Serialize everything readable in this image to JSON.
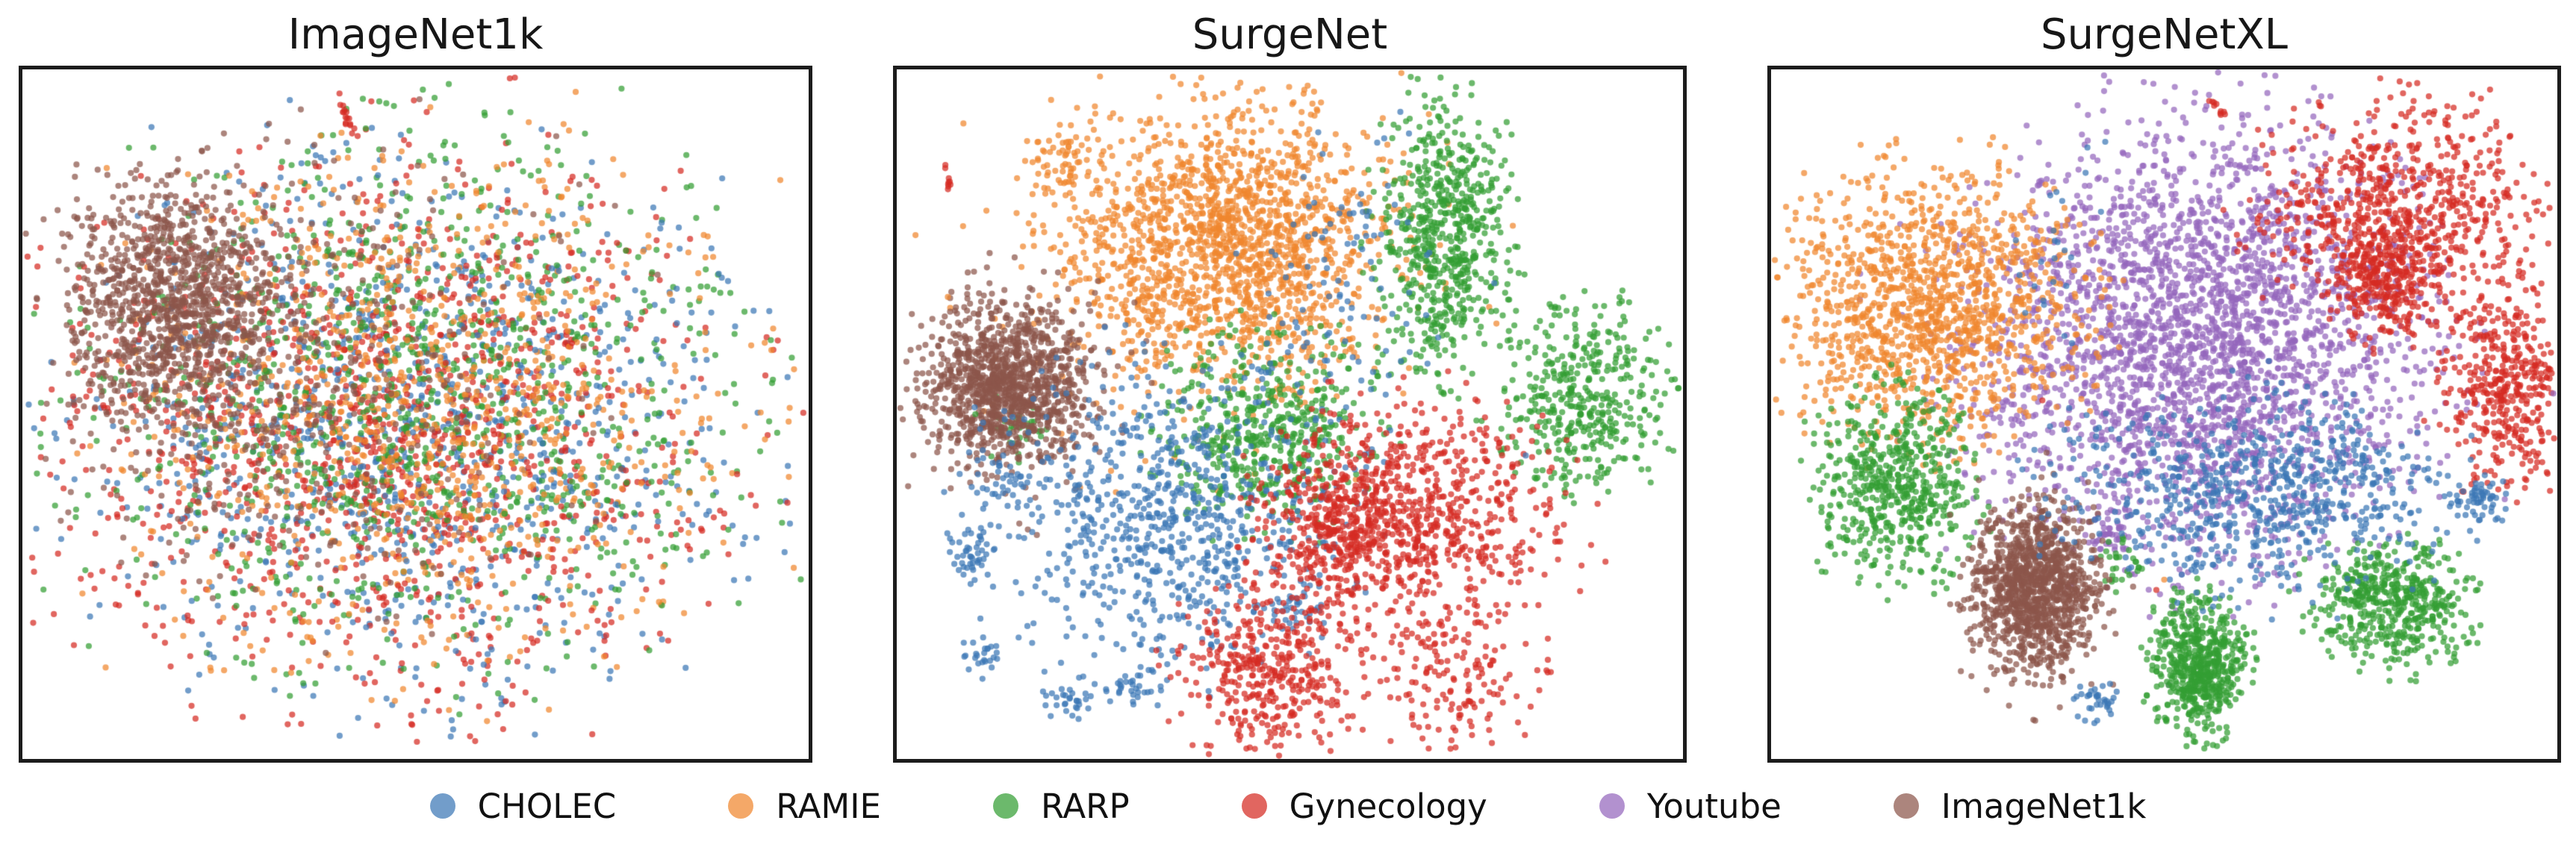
{
  "figure": {
    "background": "#ffffff",
    "border_color": "#1c1c1c",
    "description": "Three t-SNE feature-embedding scatter plots comparing pretraining datasets; axes have no ticks or labels"
  },
  "classes": {
    "CHOLEC": "#3c77b5",
    "RAMIE": "#f0862e",
    "RARP": "#339e33",
    "Gynecology": "#d62b22",
    "Youtube": "#9467bd",
    "ImageNet1k": "#8c564b"
  },
  "style": {
    "point_radius": 4.1,
    "point_alpha": 0.72,
    "legend_marker_alpha": 0.72
  },
  "legend": {
    "position": "lower center",
    "items": [
      {
        "label": "CHOLEC",
        "class": "CHOLEC"
      },
      {
        "label": "RAMIE",
        "class": "RAMIE"
      },
      {
        "label": "RARP",
        "class": "RARP"
      },
      {
        "label": "Gynecology",
        "class": "Gynecology"
      },
      {
        "label": "Youtube",
        "class": "Youtube"
      },
      {
        "label": "ImageNet1k",
        "class": "ImageNet1k"
      }
    ]
  },
  "chart_data": [
    {
      "type": "scatter",
      "title": "ImageNet1k",
      "xlabel": "",
      "ylabel": "",
      "axes": {
        "ticks_visible": false,
        "range": [
          0,
          1
        ]
      },
      "seed": 11,
      "clusters": [
        {
          "class": "CHOLEC",
          "shape": "gauss",
          "cx": 0.49,
          "cy": 0.53,
          "sx": 0.19,
          "sy": 0.18,
          "n": 900
        },
        {
          "class": "Gynecology",
          "shape": "gauss",
          "cx": 0.455,
          "cy": 0.53,
          "sx": 0.205,
          "sy": 0.19,
          "n": 1100
        },
        {
          "class": "RARP",
          "shape": "gauss",
          "cx": 0.5,
          "cy": 0.48,
          "sx": 0.2,
          "sy": 0.185,
          "n": 950
        },
        {
          "class": "RAMIE",
          "shape": "gauss",
          "cx": 0.515,
          "cy": 0.5,
          "sx": 0.185,
          "sy": 0.175,
          "n": 880
        },
        {
          "class": "Gynecology",
          "shape": "gauss",
          "cx": 0.44,
          "cy": 0.52,
          "sx": 0.27,
          "sy": 0.24,
          "n": 200
        },
        {
          "class": "CHOLEC",
          "shape": "gauss",
          "cx": 0.5,
          "cy": 0.52,
          "sx": 0.26,
          "sy": 0.23,
          "n": 170
        },
        {
          "class": "RARP",
          "shape": "gauss",
          "cx": 0.52,
          "cy": 0.47,
          "sx": 0.25,
          "sy": 0.22,
          "n": 150
        },
        {
          "class": "RAMIE",
          "shape": "gauss",
          "cx": 0.53,
          "cy": 0.5,
          "sx": 0.24,
          "sy": 0.22,
          "n": 130
        },
        {
          "class": "ImageNet1k",
          "shape": "gauss",
          "cx": 0.41,
          "cy": 0.44,
          "sx": 0.17,
          "sy": 0.17,
          "n": 300
        },
        {
          "class": "ImageNet1k",
          "shape": "gauss",
          "cx": 0.19,
          "cy": 0.33,
          "sx": 0.06,
          "sy": 0.08,
          "n": 850
        },
        {
          "class": "ImageNet1k",
          "shape": "gauss",
          "cx": 0.23,
          "cy": 0.4,
          "sx": 0.1,
          "sy": 0.14,
          "n": 420
        },
        {
          "class": "Gynecology",
          "shape": "line",
          "x1": 0.4,
          "y1": 0.045,
          "x2": 0.423,
          "y2": 0.095,
          "jitter": 0.004,
          "n": 16
        }
      ],
      "outliers": [
        [
          "Gynecology",
          0.62,
          0.013
        ],
        [
          "Gynecology",
          0.04,
          0.79
        ],
        [
          "RARP",
          0.07,
          0.44
        ],
        [
          "CHOLEC",
          0.93,
          0.35
        ]
      ]
    },
    {
      "type": "scatter",
      "title": "SurgeNet",
      "xlabel": "",
      "ylabel": "",
      "axes": {
        "ticks_visible": false,
        "range": [
          0,
          1
        ]
      },
      "seed": 22,
      "clusters": [
        {
          "class": "RAMIE",
          "shape": "gauss",
          "cx": 0.415,
          "cy": 0.255,
          "sx": 0.105,
          "sy": 0.095,
          "n": 1500
        },
        {
          "class": "RAMIE",
          "shape": "gauss",
          "cx": 0.41,
          "cy": 0.28,
          "sx": 0.155,
          "sy": 0.15,
          "n": 280
        },
        {
          "class": "RAMIE",
          "shape": "gauss",
          "cx": 0.21,
          "cy": 0.135,
          "sx": 0.02,
          "sy": 0.024,
          "n": 55
        },
        {
          "class": "RARP",
          "shape": "gauss",
          "cx": 0.695,
          "cy": 0.245,
          "sx": 0.042,
          "sy": 0.1,
          "n": 650
        },
        {
          "class": "RARP",
          "shape": "gauss",
          "cx": 0.875,
          "cy": 0.475,
          "sx": 0.055,
          "sy": 0.07,
          "n": 430
        },
        {
          "class": "RARP",
          "shape": "gauss",
          "cx": 0.475,
          "cy": 0.52,
          "sx": 0.068,
          "sy": 0.072,
          "n": 520
        },
        {
          "class": "RARP",
          "shape": "gauss",
          "cx": 0.155,
          "cy": 0.52,
          "sx": 0.018,
          "sy": 0.025,
          "n": 30
        },
        {
          "class": "ImageNet1k",
          "shape": "gauss",
          "cx": 0.14,
          "cy": 0.455,
          "sx": 0.05,
          "sy": 0.058,
          "n": 1000
        },
        {
          "class": "ImageNet1k",
          "shape": "gauss",
          "cx": 0.145,
          "cy": 0.46,
          "sx": 0.075,
          "sy": 0.085,
          "n": 250
        },
        {
          "class": "CHOLEC",
          "shape": "gauss",
          "cx": 0.345,
          "cy": 0.645,
          "sx": 0.115,
          "sy": 0.11,
          "n": 800
        },
        {
          "class": "CHOLEC",
          "shape": "gauss",
          "cx": 0.565,
          "cy": 0.33,
          "sx": 0.055,
          "sy": 0.13,
          "n": 110
        },
        {
          "class": "CHOLEC",
          "shape": "gauss",
          "cx": 0.095,
          "cy": 0.7,
          "sx": 0.016,
          "sy": 0.02,
          "n": 40
        },
        {
          "class": "CHOLEC",
          "shape": "gauss",
          "cx": 0.105,
          "cy": 0.85,
          "sx": 0.013,
          "sy": 0.015,
          "n": 25
        },
        {
          "class": "CHOLEC",
          "shape": "gauss",
          "cx": 0.215,
          "cy": 0.915,
          "sx": 0.02,
          "sy": 0.015,
          "n": 30
        },
        {
          "class": "CHOLEC",
          "shape": "gauss",
          "cx": 0.3,
          "cy": 0.9,
          "sx": 0.02,
          "sy": 0.014,
          "n": 30
        },
        {
          "class": "CHOLEC",
          "shape": "gauss",
          "cx": 0.5,
          "cy": 0.78,
          "sx": 0.022,
          "sy": 0.02,
          "n": 30
        },
        {
          "class": "CHOLEC",
          "shape": "gauss",
          "cx": 0.13,
          "cy": 0.6,
          "sx": 0.02,
          "sy": 0.02,
          "n": 35
        },
        {
          "class": "Gynecology",
          "shape": "gauss",
          "cx": 0.655,
          "cy": 0.655,
          "sx": 0.1,
          "sy": 0.09,
          "n": 800
        },
        {
          "class": "Gynecology",
          "shape": "gauss",
          "cx": 0.575,
          "cy": 0.66,
          "sx": 0.042,
          "sy": 0.05,
          "n": 260
        },
        {
          "class": "Gynecology",
          "shape": "gauss",
          "cx": 0.475,
          "cy": 0.875,
          "sx": 0.058,
          "sy": 0.062,
          "n": 420
        },
        {
          "class": "Gynecology",
          "shape": "gauss",
          "cx": 0.705,
          "cy": 0.875,
          "sx": 0.05,
          "sy": 0.055,
          "n": 150
        },
        {
          "class": "Gynecology",
          "shape": "line",
          "x1": 0.062,
          "y1": 0.13,
          "x2": 0.068,
          "y2": 0.175,
          "jitter": 0.003,
          "n": 9
        }
      ],
      "outliers": [
        [
          "RAMIE",
          0.415,
          0.035
        ],
        [
          "RAMIE",
          0.065,
          0.33
        ],
        [
          "CHOLEC",
          0.62,
          0.1
        ],
        [
          "CHOLEC",
          0.76,
          0.31
        ],
        [
          "CHOLEC",
          0.8,
          0.56
        ],
        [
          "Gynecology",
          0.59,
          0.47
        ],
        [
          "RARP",
          0.1,
          0.5
        ]
      ]
    },
    {
      "type": "scatter",
      "title": "SurgeNetXL",
      "xlabel": "",
      "ylabel": "",
      "axes": {
        "ticks_visible": false,
        "range": [
          0,
          1
        ]
      },
      "seed": 33,
      "clusters": [
        {
          "class": "Youtube",
          "shape": "gauss",
          "cx": 0.545,
          "cy": 0.395,
          "sx": 0.14,
          "sy": 0.155,
          "n": 2700
        },
        {
          "class": "Youtube",
          "shape": "gauss",
          "cx": 0.54,
          "cy": 0.42,
          "sx": 0.175,
          "sy": 0.185,
          "n": 180
        },
        {
          "class": "Youtube",
          "shape": "gauss",
          "cx": 0.43,
          "cy": 0.675,
          "sx": 0.016,
          "sy": 0.014,
          "n": 40
        },
        {
          "class": "RAMIE",
          "shape": "gauss",
          "cx": 0.205,
          "cy": 0.345,
          "sx": 0.095,
          "sy": 0.1,
          "n": 1300
        },
        {
          "class": "Gynecology",
          "shape": "gauss",
          "cx": 0.8,
          "cy": 0.205,
          "sx": 0.09,
          "sy": 0.078,
          "n": 720
        },
        {
          "class": "Gynecology",
          "shape": "gauss",
          "cx": 0.785,
          "cy": 0.3,
          "sx": 0.034,
          "sy": 0.045,
          "n": 280
        },
        {
          "class": "Gynecology",
          "shape": "gauss",
          "cx": 0.935,
          "cy": 0.46,
          "sx": 0.042,
          "sy": 0.07,
          "n": 430
        },
        {
          "class": "Gynecology",
          "shape": "line",
          "x1": 0.555,
          "y1": 0.04,
          "x2": 0.578,
          "y2": 0.068,
          "jitter": 0.004,
          "n": 10
        },
        {
          "class": "RARP",
          "shape": "gauss",
          "cx": 0.155,
          "cy": 0.6,
          "sx": 0.052,
          "sy": 0.068,
          "n": 580
        },
        {
          "class": "RARP",
          "shape": "gauss",
          "cx": 0.545,
          "cy": 0.865,
          "sx": 0.03,
          "sy": 0.05,
          "n": 600
        },
        {
          "class": "RARP",
          "shape": "gauss",
          "cx": 0.79,
          "cy": 0.775,
          "sx": 0.052,
          "sy": 0.045,
          "n": 520
        },
        {
          "class": "RARP",
          "shape": "gauss",
          "cx": 0.445,
          "cy": 0.72,
          "sx": 0.016,
          "sy": 0.02,
          "n": 30
        },
        {
          "class": "ImageNet1k",
          "shape": "gauss",
          "cx": 0.335,
          "cy": 0.755,
          "sx": 0.038,
          "sy": 0.056,
          "n": 1050
        },
        {
          "class": "ImageNet1k",
          "shape": "gauss",
          "cx": 0.34,
          "cy": 0.75,
          "sx": 0.055,
          "sy": 0.08,
          "n": 180
        },
        {
          "class": "CHOLEC",
          "shape": "gauss",
          "cx": 0.615,
          "cy": 0.615,
          "sx": 0.12,
          "sy": 0.075,
          "n": 650
        },
        {
          "class": "CHOLEC",
          "shape": "gauss",
          "cx": 0.9,
          "cy": 0.625,
          "sx": 0.018,
          "sy": 0.018,
          "n": 55
        },
        {
          "class": "CHOLEC",
          "shape": "gauss",
          "cx": 0.415,
          "cy": 0.915,
          "sx": 0.014,
          "sy": 0.016,
          "n": 35
        },
        {
          "class": "CHOLEC",
          "shape": "gauss",
          "cx": 0.36,
          "cy": 0.28,
          "sx": 0.03,
          "sy": 0.09,
          "n": 22
        },
        {
          "class": "CHOLEC",
          "shape": "gauss",
          "cx": 0.73,
          "cy": 0.58,
          "sx": 0.05,
          "sy": 0.04,
          "n": 80
        }
      ],
      "outliers": [
        [
          "Gynecology",
          0.345,
          0.48
        ],
        [
          "CHOLEC",
          0.4,
          0.15
        ],
        [
          "CHOLEC",
          0.425,
          0.105
        ],
        [
          "Youtube",
          0.85,
          0.62
        ],
        [
          "Youtube",
          0.64,
          0.73
        ],
        [
          "Youtube",
          0.995,
          0.47
        ],
        [
          "RAMIE",
          0.27,
          0.545
        ],
        [
          "RAMIE",
          0.5,
          0.74
        ],
        [
          "RAMIE",
          0.075,
          0.44
        ],
        [
          "Gynecology",
          0.49,
          0.755
        ],
        [
          "RARP",
          0.51,
          0.77
        ]
      ]
    }
  ]
}
